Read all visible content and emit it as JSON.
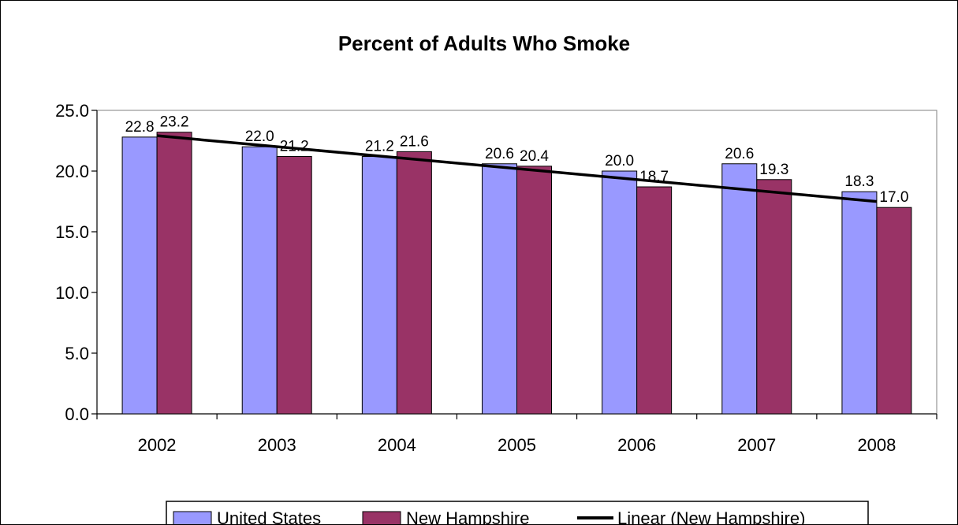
{
  "chart_data": {
    "type": "bar",
    "title": "Percent of Adults Who Smoke",
    "categories": [
      "2002",
      "2003",
      "2004",
      "2005",
      "2006",
      "2007",
      "2008"
    ],
    "series": [
      {
        "name": "United States",
        "color": "#9999ff",
        "values": [
          22.8,
          22.0,
          21.2,
          20.6,
          20.0,
          20.6,
          18.3
        ],
        "labels": [
          "22.8",
          "22.0",
          "21.2",
          "20.6",
          "20.0",
          "20.6",
          "18.3"
        ]
      },
      {
        "name": "New Hampshire",
        "color": "#993366",
        "values": [
          23.2,
          21.2,
          21.6,
          20.4,
          18.7,
          19.3,
          17.0
        ],
        "labels": [
          "23.2",
          "21.2",
          "21.6",
          "20.4",
          "18.7",
          "19.3",
          "17.0"
        ]
      }
    ],
    "trendline": {
      "name": "Linear (New Hampshire)",
      "series": "New Hampshire",
      "color": "#000000"
    },
    "ylim": [
      0,
      25
    ],
    "yticks": [
      "0.0",
      "5.0",
      "10.0",
      "15.0",
      "20.0",
      "25.0"
    ],
    "grid": false,
    "legend_position": "bottom"
  }
}
